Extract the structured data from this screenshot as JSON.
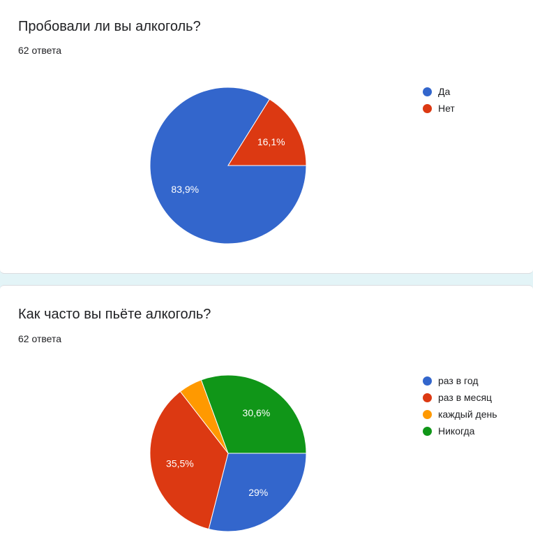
{
  "charts": [
    {
      "title": "Пробовали ли вы алкоголь?",
      "responses": "62 ответа"
    },
    {
      "title": "Как часто вы пьёте алкоголь?",
      "responses": "62 ответа"
    }
  ],
  "chart_data": [
    {
      "type": "pie",
      "title": "Пробовали ли вы алкоголь?",
      "legend_position": "right",
      "categories": [
        "Да",
        "Нет"
      ],
      "values": [
        83.9,
        16.1
      ],
      "labels": [
        "83,9%",
        "16,1%"
      ],
      "colors": [
        "#3366cc",
        "#dc3912"
      ]
    },
    {
      "type": "pie",
      "title": "Как часто вы пьёте алкоголь?",
      "legend_position": "right",
      "categories": [
        "раз в год",
        "раз в месяц",
        "каждый день",
        "Никогда"
      ],
      "values": [
        29,
        35.5,
        4.9,
        30.6
      ],
      "labels": [
        "29%",
        "35,5%",
        "",
        "30,6%"
      ],
      "colors": [
        "#3366cc",
        "#dc3912",
        "#ff9900",
        "#109618"
      ]
    }
  ]
}
